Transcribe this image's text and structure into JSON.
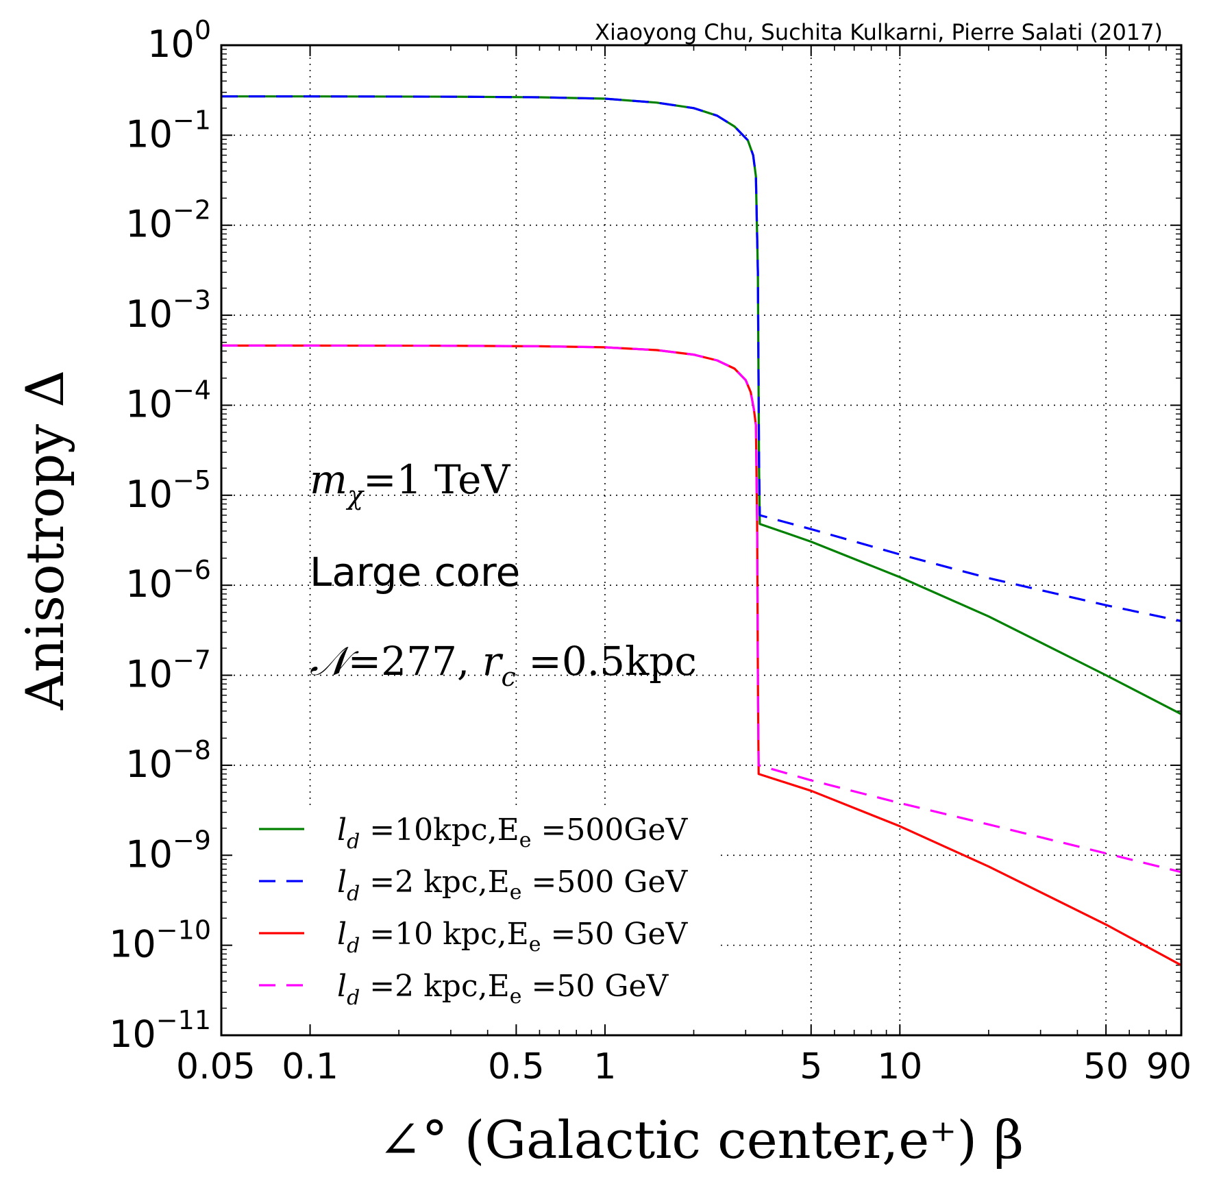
{
  "chart_data": {
    "type": "line",
    "credit": "Xiaoyong Chu, Suchita Kulkarni, Pierre Salati (2017)",
    "xlabel": "∠° (Galactic center,e⁺) β",
    "ylabel": "Anisotropy Δ",
    "xscale": "log",
    "yscale": "log",
    "xlim": [
      0.05,
      90
    ],
    "ylim": [
      1e-11,
      1
    ],
    "grid": true,
    "legend_position": "lower-left",
    "x_ticks": [
      {
        "value": 0.05,
        "label": "0.05"
      },
      {
        "value": 0.1,
        "label": "0.1"
      },
      {
        "value": 0.5,
        "label": "0.5"
      },
      {
        "value": 1,
        "label": "1"
      },
      {
        "value": 5,
        "label": "5"
      },
      {
        "value": 10,
        "label": "10"
      },
      {
        "value": 50,
        "label": "50"
      },
      {
        "value": 90,
        "label": "90"
      }
    ],
    "x_minor_ticks": [
      0.2,
      0.3,
      0.4,
      0.6,
      0.7,
      0.8,
      0.9,
      2,
      3,
      4,
      6,
      7,
      8,
      9,
      20,
      30,
      40,
      60,
      70,
      80
    ],
    "y_ticks": [
      {
        "value": 1,
        "base": "10",
        "exp": "0"
      },
      {
        "value": 0.1,
        "base": "10",
        "exp": "−1"
      },
      {
        "value": 0.01,
        "base": "10",
        "exp": "−2"
      },
      {
        "value": 0.001,
        "base": "10",
        "exp": "−3"
      },
      {
        "value": 0.0001,
        "base": "10",
        "exp": "−4"
      },
      {
        "value": 1e-05,
        "base": "10",
        "exp": "−5"
      },
      {
        "value": 1e-06,
        "base": "10",
        "exp": "−6"
      },
      {
        "value": 1e-07,
        "base": "10",
        "exp": "−7"
      },
      {
        "value": 1e-08,
        "base": "10",
        "exp": "−8"
      },
      {
        "value": 1e-09,
        "base": "10",
        "exp": "−9"
      },
      {
        "value": 1e-10,
        "base": "10",
        "exp": "−10"
      },
      {
        "value": 1e-11,
        "base": "10",
        "exp": "−11"
      }
    ],
    "annotations": {
      "mass": {
        "symbol": "m",
        "sub": "χ",
        "text": "=1 TeV"
      },
      "profile": "Large core",
      "params": {
        "symbol": "𝒩",
        "text1": "=277, ",
        "r": "r",
        "sub": "c",
        "text2": " =0.5kpc"
      }
    },
    "series": [
      {
        "name": "l_d =10kpc,E_e =500GeV",
        "legend": {
          "l": "l",
          "sub": "d",
          "mid": " =10kpc,E",
          "esub": "e",
          "tail": " =500GeV"
        },
        "color": "#008000",
        "dash": "solid",
        "points": [
          [
            0.05,
            0.27
          ],
          [
            0.1,
            0.27
          ],
          [
            0.3,
            0.268
          ],
          [
            0.6,
            0.264
          ],
          [
            1,
            0.255
          ],
          [
            1.5,
            0.23
          ],
          [
            2,
            0.2
          ],
          [
            2.4,
            0.165
          ],
          [
            2.75,
            0.125
          ],
          [
            3.05,
            0.088
          ],
          [
            3.18,
            0.06
          ],
          [
            3.25,
            0.035
          ],
          [
            3.3,
            0.003
          ],
          [
            3.33,
            2e-05
          ],
          [
            3.35,
            4.8e-06
          ],
          [
            5,
            3.05e-06
          ],
          [
            10,
            1.23e-06
          ],
          [
            20,
            4.5e-07
          ],
          [
            50,
            1e-07
          ],
          [
            90,
            3.7e-08
          ]
        ]
      },
      {
        "name": "l_d =2 kpc,E_e =500 GeV",
        "legend": {
          "l": "l",
          "sub": "d",
          "mid": " =2 kpc,E",
          "esub": "e",
          "tail": " =500 GeV"
        },
        "color": "#0000ff",
        "dash": "dashed",
        "points": [
          [
            0.05,
            0.27
          ],
          [
            0.1,
            0.27
          ],
          [
            0.3,
            0.268
          ],
          [
            0.6,
            0.264
          ],
          [
            1,
            0.255
          ],
          [
            1.5,
            0.23
          ],
          [
            2,
            0.2
          ],
          [
            2.4,
            0.165
          ],
          [
            2.75,
            0.125
          ],
          [
            3.05,
            0.088
          ],
          [
            3.18,
            0.06
          ],
          [
            3.25,
            0.035
          ],
          [
            3.3,
            0.003
          ],
          [
            3.33,
            2.5e-05
          ],
          [
            3.35,
            6e-06
          ],
          [
            5,
            4.2e-06
          ],
          [
            10,
            2.2e-06
          ],
          [
            20,
            1.2e-06
          ],
          [
            50,
            6e-07
          ],
          [
            90,
            4e-07
          ]
        ]
      },
      {
        "name": "l_d =10 kpc,E_e =50 GeV",
        "legend": {
          "l": "l",
          "sub": "d",
          "mid": " =10 kpc,E",
          "esub": "e",
          "tail": " =50 GeV"
        },
        "color": "#ff0000",
        "dash": "solid",
        "points": [
          [
            0.05,
            0.00046
          ],
          [
            0.1,
            0.00046
          ],
          [
            0.3,
            0.000458
          ],
          [
            0.6,
            0.000452
          ],
          [
            1,
            0.00044
          ],
          [
            1.5,
            0.00041
          ],
          [
            2,
            0.000365
          ],
          [
            2.4,
            0.000315
          ],
          [
            2.75,
            0.000255
          ],
          [
            3.0,
            0.00019
          ],
          [
            3.12,
            0.00014
          ],
          [
            3.2,
            9e-05
          ],
          [
            3.25,
            6e-05
          ],
          [
            3.28,
            5e-06
          ],
          [
            3.3,
            1e-07
          ],
          [
            3.32,
            8e-09
          ],
          [
            5,
            5.2e-09
          ],
          [
            10,
            2.1e-09
          ],
          [
            20,
            7.5e-10
          ],
          [
            50,
            1.7e-10
          ],
          [
            90,
            6e-11
          ]
        ]
      },
      {
        "name": "l_d =2 kpc,E_e =50 GeV",
        "legend": {
          "l": "l",
          "sub": "d",
          "mid": " =2 kpc,E",
          "esub": "e",
          "tail": " =50 GeV"
        },
        "color": "#ff00ff",
        "dash": "dashed",
        "points": [
          [
            0.05,
            0.00046
          ],
          [
            0.1,
            0.00046
          ],
          [
            0.3,
            0.000458
          ],
          [
            0.6,
            0.000452
          ],
          [
            1,
            0.00044
          ],
          [
            1.5,
            0.00041
          ],
          [
            2,
            0.000365
          ],
          [
            2.4,
            0.000315
          ],
          [
            2.75,
            0.000255
          ],
          [
            3.0,
            0.00019
          ],
          [
            3.12,
            0.00014
          ],
          [
            3.2,
            9e-05
          ],
          [
            3.25,
            6e-05
          ],
          [
            3.28,
            5e-06
          ],
          [
            3.3,
            1e-07
          ],
          [
            3.32,
            1e-08
          ],
          [
            5,
            6.8e-09
          ],
          [
            10,
            3.8e-09
          ],
          [
            20,
            2.2e-09
          ],
          [
            50,
            1.05e-09
          ],
          [
            90,
            6.5e-10
          ]
        ]
      }
    ]
  }
}
